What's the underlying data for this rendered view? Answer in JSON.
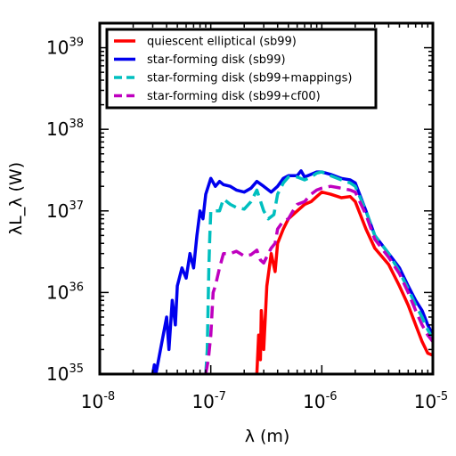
{
  "chart_data": {
    "type": "line",
    "xscale": "log",
    "yscale": "log",
    "xlim": [
      1e-08,
      1e-05
    ],
    "ylim": [
      1e+35,
      2e+39
    ],
    "xlabel": "λ (m)",
    "ylabel": "λL_λ (W)",
    "x_ticks": [
      {
        "value": 1e-08,
        "base": "10",
        "exp": "-8"
      },
      {
        "value": 1e-07,
        "base": "10",
        "exp": "-7"
      },
      {
        "value": 1e-06,
        "base": "10",
        "exp": "-6"
      },
      {
        "value": 1e-05,
        "base": "10",
        "exp": "-5"
      }
    ],
    "y_ticks": [
      {
        "value": 1e+35,
        "base": "10",
        "exp": "35"
      },
      {
        "value": 1e+36,
        "base": "10",
        "exp": "36"
      },
      {
        "value": 1e+37,
        "base": "10",
        "exp": "37"
      },
      {
        "value": 1e+38,
        "base": "10",
        "exp": "38"
      },
      {
        "value": 1e+39,
        "base": "10",
        "exp": "39"
      }
    ],
    "grid": false,
    "legend_position": "top-left",
    "series": [
      {
        "name": "quiescent elliptical (sb99)",
        "color": "#ff0000",
        "dash": "solid",
        "points": [
          [
            2.6e-07,
            1e+35
          ],
          [
            2.7e-07,
            3e+35
          ],
          [
            2.8e-07,
            1.5e+35
          ],
          [
            2.85e-07,
            6e+35
          ],
          [
            3e-07,
            2e+35
          ],
          [
            3.2e-07,
            1.2e+36
          ],
          [
            3.5e-07,
            3e+36
          ],
          [
            3.8e-07,
            1.8e+36
          ],
          [
            4e-07,
            4e+36
          ],
          [
            4.5e-07,
            6e+36
          ],
          [
            5e-07,
            8e+36
          ],
          [
            6e-07,
            1e+37
          ],
          [
            7e-07,
            1.2e+37
          ],
          [
            8e-07,
            1.3e+37
          ],
          [
            9e-07,
            1.5e+37
          ],
          [
            1e-06,
            1.7e+37
          ],
          [
            1.2e-06,
            1.6e+37
          ],
          [
            1.5e-06,
            1.45e+37
          ],
          [
            1.8e-06,
            1.5e+37
          ],
          [
            2e-06,
            1.3e+37
          ],
          [
            2.5e-06,
            6e+36
          ],
          [
            3e-06,
            3.5e+36
          ],
          [
            4e-06,
            2.2e+36
          ],
          [
            5e-06,
            1.2e+36
          ],
          [
            6e-06,
            7e+35
          ],
          [
            7e-06,
            4e+35
          ],
          [
            8e-06,
            2.5e+35
          ],
          [
            9e-06,
            1.8e+35
          ],
          [
            1e-05,
            1.7e+35
          ]
        ]
      },
      {
        "name": "star-forming disk (sb99)",
        "color": "#0000ee",
        "dash": "solid",
        "points": [
          [
            3e-08,
            1e+35
          ],
          [
            3.1e-08,
            1.3e+35
          ],
          [
            3.2e-08,
            1e+35
          ],
          [
            4e-08,
            5e+35
          ],
          [
            4.2e-08,
            2e+35
          ],
          [
            4.5e-08,
            8e+35
          ],
          [
            4.8e-08,
            4e+35
          ],
          [
            5e-08,
            1.2e+36
          ],
          [
            5.5e-08,
            2e+36
          ],
          [
            6e-08,
            1.5e+36
          ],
          [
            6.5e-08,
            3e+36
          ],
          [
            7e-08,
            2e+36
          ],
          [
            7.5e-08,
            5e+36
          ],
          [
            8e-08,
            1e+37
          ],
          [
            8.5e-08,
            8e+36
          ],
          [
            9e-08,
            1.6e+37
          ],
          [
            1e-07,
            2.5e+37
          ],
          [
            1.1e-07,
            2e+37
          ],
          [
            1.2e-07,
            2.3e+37
          ],
          [
            1.3e-07,
            2.1e+37
          ],
          [
            1.5e-07,
            2e+37
          ],
          [
            1.7e-07,
            1.8e+37
          ],
          [
            2e-07,
            1.7e+37
          ],
          [
            2.3e-07,
            1.9e+37
          ],
          [
            2.6e-07,
            2.3e+37
          ],
          [
            3e-07,
            2e+37
          ],
          [
            3.5e-07,
            1.7e+37
          ],
          [
            4e-07,
            2e+37
          ],
          [
            4.5e-07,
            2.5e+37
          ],
          [
            5e-07,
            2.7e+37
          ],
          [
            6e-07,
            2.7e+37
          ],
          [
            6.5e-07,
            3.1e+37
          ],
          [
            7e-07,
            2.6e+37
          ],
          [
            8e-07,
            2.8e+37
          ],
          [
            9e-07,
            3e+37
          ],
          [
            1e-06,
            3e+37
          ],
          [
            1.2e-06,
            2.8e+37
          ],
          [
            1.5e-06,
            2.5e+37
          ],
          [
            1.8e-06,
            2.4e+37
          ],
          [
            2e-06,
            2.2e+37
          ],
          [
            2.5e-06,
            1e+37
          ],
          [
            3e-06,
            5e+36
          ],
          [
            4e-06,
            3e+36
          ],
          [
            5e-06,
            2e+36
          ],
          [
            6e-06,
            1.2e+36
          ],
          [
            7e-06,
            8e+35
          ],
          [
            8e-06,
            6e+35
          ],
          [
            9e-06,
            4e+35
          ],
          [
            1e-05,
            3e+35
          ]
        ]
      },
      {
        "name": "star-forming disk (sb99+mappings)",
        "color": "#00bfbf",
        "dash": "dashed",
        "points": [
          [
            9e-08,
            1e+35
          ],
          [
            9.3e-08,
            2e+35
          ],
          [
            9.6e-08,
            2e+36
          ],
          [
            9.8e-08,
            5e+36
          ],
          [
            1e-07,
            1e+37
          ],
          [
            1.1e-07,
            1e+37
          ],
          [
            1.2e-07,
            1e+37
          ],
          [
            1.3e-07,
            1.4e+37
          ],
          [
            1.5e-07,
            1.2e+37
          ],
          [
            1.7e-07,
            1.1e+37
          ],
          [
            2e-07,
            1.05e+37
          ],
          [
            2.3e-07,
            1.3e+37
          ],
          [
            2.6e-07,
            1.8e+37
          ],
          [
            3e-07,
            1e+37
          ],
          [
            3.3e-07,
            8e+36
          ],
          [
            3.7e-07,
            9e+36
          ],
          [
            4e-07,
            1.6e+37
          ],
          [
            4.5e-07,
            2.2e+37
          ],
          [
            5e-07,
            2.6e+37
          ],
          [
            6e-07,
            2.6e+37
          ],
          [
            7e-07,
            2.4e+37
          ],
          [
            8e-07,
            2.6e+37
          ],
          [
            9e-07,
            2.9e+37
          ],
          [
            1e-06,
            3e+37
          ],
          [
            1.2e-06,
            2.7e+37
          ],
          [
            1.5e-06,
            2.4e+37
          ],
          [
            1.8e-06,
            2.2e+37
          ],
          [
            2e-06,
            2e+37
          ],
          [
            2.5e-06,
            1e+37
          ],
          [
            3e-06,
            5e+36
          ],
          [
            4e-06,
            3e+36
          ],
          [
            5e-06,
            1.8e+36
          ],
          [
            6e-06,
            1.1e+36
          ],
          [
            7e-06,
            7e+35
          ],
          [
            8e-06,
            5e+35
          ],
          [
            9e-06,
            3.5e+35
          ],
          [
            1e-05,
            2.7e+35
          ]
        ]
      },
      {
        "name": "star-forming disk (sb99+cf00)",
        "color": "#bf00bf",
        "dash": "dashed",
        "points": [
          [
            9e-08,
            1e+35
          ],
          [
            9.5e-08,
            1.5e+35
          ],
          [
            1e-07,
            3e+35
          ],
          [
            1.05e-07,
            1e+36
          ],
          [
            1.1e-07,
            1.2e+36
          ],
          [
            1.2e-07,
            2e+36
          ],
          [
            1.3e-07,
            3e+36
          ],
          [
            1.5e-07,
            3e+36
          ],
          [
            1.7e-07,
            3.2e+36
          ],
          [
            2e-07,
            2.8e+36
          ],
          [
            2.3e-07,
            2.9e+36
          ],
          [
            2.6e-07,
            3.3e+36
          ],
          [
            2.8e-07,
            2.5e+36
          ],
          [
            3e-07,
            2.3e+36
          ],
          [
            3.3e-07,
            3e+36
          ],
          [
            3.5e-07,
            3.5e+36
          ],
          [
            3.8e-07,
            4e+36
          ],
          [
            4e-07,
            6e+36
          ],
          [
            4.5e-07,
            7.5e+36
          ],
          [
            5e-07,
            8e+36
          ],
          [
            5.5e-07,
            1e+37
          ],
          [
            6e-07,
            1.2e+37
          ],
          [
            7e-07,
            1.3e+37
          ],
          [
            8e-07,
            1.6e+37
          ],
          [
            9e-07,
            1.8e+37
          ],
          [
            1e-06,
            1.9e+37
          ],
          [
            1.2e-06,
            2e+37
          ],
          [
            1.5e-06,
            1.9e+37
          ],
          [
            1.8e-06,
            1.8e+37
          ],
          [
            2e-06,
            1.7e+37
          ],
          [
            2.5e-06,
            9e+36
          ],
          [
            3e-06,
            4.5e+36
          ],
          [
            4e-06,
            2.7e+36
          ],
          [
            5e-06,
            1.7e+36
          ],
          [
            6e-06,
            1e+36
          ],
          [
            7e-06,
            6e+35
          ],
          [
            8e-06,
            4e+35
          ],
          [
            9e-06,
            3e+35
          ],
          [
            1e-05,
            2.5e+35
          ]
        ]
      }
    ]
  }
}
